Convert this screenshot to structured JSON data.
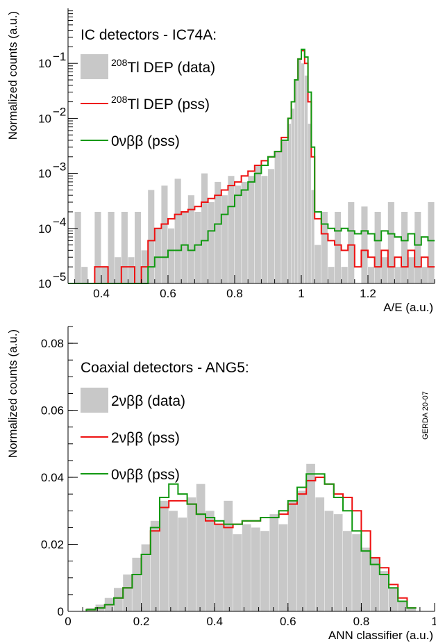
{
  "chart_data": [
    {
      "type": "histogram",
      "title": "IC detectors - IC74A:",
      "xlabel": "A/E (a.u.)",
      "ylabel": "Normalized counts (a.u.)",
      "xlim": [
        0.3,
        1.4
      ],
      "ylim": [
        1e-05,
        1
      ],
      "yscale": "log",
      "xticks": [
        0.4,
        0.6,
        0.8,
        1.0,
        1.2
      ],
      "xtick_labels": [
        "0.4",
        "0.6",
        "0.8",
        "1",
        "1.2"
      ],
      "yticks": [
        1e-05,
        0.0001,
        0.001,
        0.01,
        0.1
      ],
      "ytick_labels": [
        [
          "10",
          "−5"
        ],
        [
          "10",
          "−4"
        ],
        [
          "10",
          "−3"
        ],
        [
          "10",
          "−2"
        ],
        [
          "10",
          "−1"
        ]
      ],
      "legend_position": "top-left",
      "series": [
        {
          "name_sup": "208",
          "name_main": "Tl DEP (data)",
          "style": "filled",
          "color": "#c8c8c8",
          "x": [
            0.3,
            0.32,
            0.34,
            0.36,
            0.38,
            0.4,
            0.42,
            0.44,
            0.46,
            0.48,
            0.5,
            0.52,
            0.54,
            0.56,
            0.58,
            0.6,
            0.62,
            0.64,
            0.66,
            0.68,
            0.7,
            0.72,
            0.74,
            0.76,
            0.78,
            0.8,
            0.82,
            0.84,
            0.86,
            0.88,
            0.9,
            0.92,
            0.94,
            0.96,
            0.97,
            0.98,
            0.99,
            1.0,
            1.01,
            1.02,
            1.03,
            1.04,
            1.06,
            1.08,
            1.1,
            1.12,
            1.14,
            1.16,
            1.18,
            1.2,
            1.22,
            1.24,
            1.26,
            1.28,
            1.3,
            1.32,
            1.34,
            1.36,
            1.38
          ],
          "y": [
            1e-05,
            0.0002,
            2e-05,
            1e-05,
            0.0002,
            2e-05,
            0.0002,
            3e-05,
            0.0002,
            3e-05,
            0.0002,
            4e-05,
            0.0005,
            0.0001,
            0.0006,
            0.0001,
            0.0008,
            0.0002,
            0.0004,
            0.0002,
            0.001,
            0.0003,
            0.0007,
            0.0004,
            0.0009,
            0.0006,
            0.0007,
            0.0009,
            0.0014,
            0.0009,
            0.0012,
            0.0025,
            0.004,
            0.008,
            0.015,
            0.05,
            0.12,
            0.1,
            0.06,
            0.008,
            0.0005,
            5e-05,
            0.0002,
            2e-05,
            0.0002,
            2e-05,
            0.0003,
            1e-05,
            0.00025,
            2e-05,
            0.0002,
            3e-05,
            0.0003,
            2e-05,
            0.0002,
            3e-05,
            0.0002,
            2e-05,
            0.0003
          ]
        },
        {
          "name_sup": "208",
          "name_main": "Tl DEP (pss)",
          "style": "step",
          "color": "#ee1111",
          "x": [
            0.3,
            0.34,
            0.38,
            0.42,
            0.46,
            0.5,
            0.52,
            0.54,
            0.56,
            0.58,
            0.6,
            0.62,
            0.64,
            0.66,
            0.68,
            0.7,
            0.72,
            0.74,
            0.76,
            0.78,
            0.8,
            0.82,
            0.84,
            0.86,
            0.88,
            0.9,
            0.92,
            0.94,
            0.96,
            0.97,
            0.98,
            0.99,
            1.0,
            1.01,
            1.02,
            1.03,
            1.04,
            1.06,
            1.08,
            1.1,
            1.12,
            1.14,
            1.16,
            1.18,
            1.2,
            1.22,
            1.24,
            1.26,
            1.28,
            1.3,
            1.32,
            1.34,
            1.36,
            1.38
          ],
          "y": [
            1e-05,
            1e-05,
            2e-05,
            1e-05,
            2e-05,
            1e-05,
            2e-05,
            6e-05,
            0.0001,
            0.00012,
            0.00015,
            0.00018,
            0.0002,
            0.00022,
            0.00025,
            0.0003,
            0.00035,
            0.0004,
            0.0005,
            0.0006,
            0.0007,
            0.0009,
            0.0011,
            0.0014,
            0.0017,
            0.002,
            0.0025,
            0.0045,
            0.01,
            0.02,
            0.05,
            0.12,
            0.17,
            0.1,
            0.02,
            0.002,
            0.00015,
            8e-05,
            6e-05,
            5e-05,
            4e-05,
            5e-05,
            2e-05,
            4e-05,
            3e-05,
            2e-05,
            4e-05,
            2e-05,
            3e-05,
            2e-05,
            4e-05,
            2e-05,
            3e-05,
            2e-05
          ]
        },
        {
          "name_main": "0νββ (pss)",
          "style": "step",
          "color": "#119911",
          "x": [
            0.3,
            0.34,
            0.38,
            0.42,
            0.46,
            0.5,
            0.52,
            0.54,
            0.56,
            0.58,
            0.6,
            0.62,
            0.64,
            0.66,
            0.68,
            0.7,
            0.72,
            0.74,
            0.76,
            0.78,
            0.8,
            0.82,
            0.84,
            0.86,
            0.88,
            0.9,
            0.92,
            0.94,
            0.96,
            0.97,
            0.98,
            0.99,
            1.0,
            1.01,
            1.02,
            1.03,
            1.04,
            1.06,
            1.08,
            1.1,
            1.12,
            1.14,
            1.16,
            1.18,
            1.2,
            1.22,
            1.24,
            1.26,
            1.28,
            1.3,
            1.32,
            1.34,
            1.36,
            1.38
          ],
          "y": [
            1e-05,
            1e-05,
            1e-05,
            1e-05,
            1e-05,
            1e-05,
            1e-05,
            2e-05,
            3e-05,
            3e-05,
            4e-05,
            4e-05,
            5e-05,
            4e-05,
            5e-05,
            6e-05,
            9e-05,
            0.00012,
            0.00018,
            0.00025,
            0.0004,
            0.0005,
            0.0007,
            0.001,
            0.0014,
            0.002,
            0.0025,
            0.004,
            0.01,
            0.02,
            0.05,
            0.12,
            0.18,
            0.13,
            0.03,
            0.003,
            0.0002,
            0.00012,
            0.0001,
            9e-05,
            0.0001,
            9e-05,
            8e-05,
            9e-05,
            8e-05,
            6e-05,
            9e-05,
            8e-05,
            7e-05,
            6e-05,
            8e-05,
            5e-05,
            7e-05,
            6e-05
          ]
        }
      ]
    },
    {
      "type": "histogram",
      "title": "Coaxial detectors - ANG5:",
      "xlabel": "ANN classifier (a.u.)",
      "ylabel": "Normalized counts (a.u.)",
      "annotation": "GERDA 20-07",
      "xlim": [
        0,
        1
      ],
      "ylim": [
        0,
        0.085
      ],
      "yscale": "linear",
      "xticks": [
        0,
        0.2,
        0.4,
        0.6,
        0.8,
        1
      ],
      "xtick_labels": [
        "0",
        "0.2",
        "0.4",
        "0.6",
        "0.8",
        "1"
      ],
      "yticks": [
        0,
        0.02,
        0.04,
        0.06,
        0.08
      ],
      "ytick_labels": [
        "0",
        "0.02",
        "0.04",
        "0.06",
        "0.08"
      ],
      "legend_position": "top-left",
      "series": [
        {
          "name_main": "2νββ (data)",
          "style": "filled",
          "color": "#c8c8c8",
          "x": [
            0.05,
            0.075,
            0.1,
            0.125,
            0.15,
            0.175,
            0.2,
            0.225,
            0.25,
            0.275,
            0.3,
            0.325,
            0.35,
            0.375,
            0.4,
            0.425,
            0.45,
            0.475,
            0.5,
            0.525,
            0.55,
            0.575,
            0.6,
            0.625,
            0.65,
            0.675,
            0.7,
            0.725,
            0.75,
            0.775,
            0.8,
            0.825,
            0.85,
            0.875,
            0.9,
            0.925
          ],
          "y": [
            0.001,
            0.002,
            0.004,
            0.007,
            0.011,
            0.016,
            0.02,
            0.027,
            0.033,
            0.03,
            0.028,
            0.034,
            0.038,
            0.03,
            0.026,
            0.033,
            0.023,
            0.026,
            0.025,
            0.024,
            0.029,
            0.026,
            0.033,
            0.036,
            0.044,
            0.034,
            0.03,
            0.029,
            0.024,
            0.023,
            0.019,
            0.016,
            0.012,
            0.007,
            0.003,
            0.001
          ]
        },
        {
          "name_main": "2νββ (pss)",
          "style": "step",
          "color": "#ee1111",
          "x": [
            0.05,
            0.075,
            0.1,
            0.125,
            0.15,
            0.175,
            0.2,
            0.225,
            0.25,
            0.275,
            0.3,
            0.325,
            0.35,
            0.375,
            0.4,
            0.425,
            0.45,
            0.475,
            0.5,
            0.525,
            0.55,
            0.575,
            0.6,
            0.625,
            0.65,
            0.675,
            0.7,
            0.725,
            0.75,
            0.775,
            0.8,
            0.825,
            0.85,
            0.875,
            0.9,
            0.925
          ],
          "y": [
            0.0005,
            0.001,
            0.002,
            0.004,
            0.007,
            0.011,
            0.017,
            0.024,
            0.031,
            0.033,
            0.033,
            0.032,
            0.029,
            0.027,
            0.026,
            0.025,
            0.026,
            0.027,
            0.027,
            0.028,
            0.028,
            0.029,
            0.032,
            0.035,
            0.039,
            0.04,
            0.038,
            0.035,
            0.034,
            0.03,
            0.024,
            0.016,
            0.013,
            0.008,
            0.004,
            0.001
          ]
        },
        {
          "name_main": "0νββ (pss)",
          "style": "step",
          "color": "#119911",
          "x": [
            0.05,
            0.075,
            0.1,
            0.125,
            0.15,
            0.175,
            0.2,
            0.225,
            0.25,
            0.275,
            0.3,
            0.325,
            0.35,
            0.375,
            0.4,
            0.425,
            0.45,
            0.475,
            0.5,
            0.525,
            0.55,
            0.575,
            0.6,
            0.625,
            0.65,
            0.675,
            0.7,
            0.725,
            0.75,
            0.775,
            0.8,
            0.825,
            0.85,
            0.875,
            0.9,
            0.925
          ],
          "y": [
            0.0005,
            0.001,
            0.002,
            0.004,
            0.007,
            0.011,
            0.017,
            0.025,
            0.034,
            0.038,
            0.035,
            0.032,
            0.029,
            0.028,
            0.027,
            0.026,
            0.026,
            0.027,
            0.027,
            0.028,
            0.028,
            0.03,
            0.033,
            0.037,
            0.041,
            0.041,
            0.038,
            0.034,
            0.03,
            0.024,
            0.018,
            0.014,
            0.011,
            0.007,
            0.003,
            0.001
          ]
        }
      ]
    }
  ]
}
